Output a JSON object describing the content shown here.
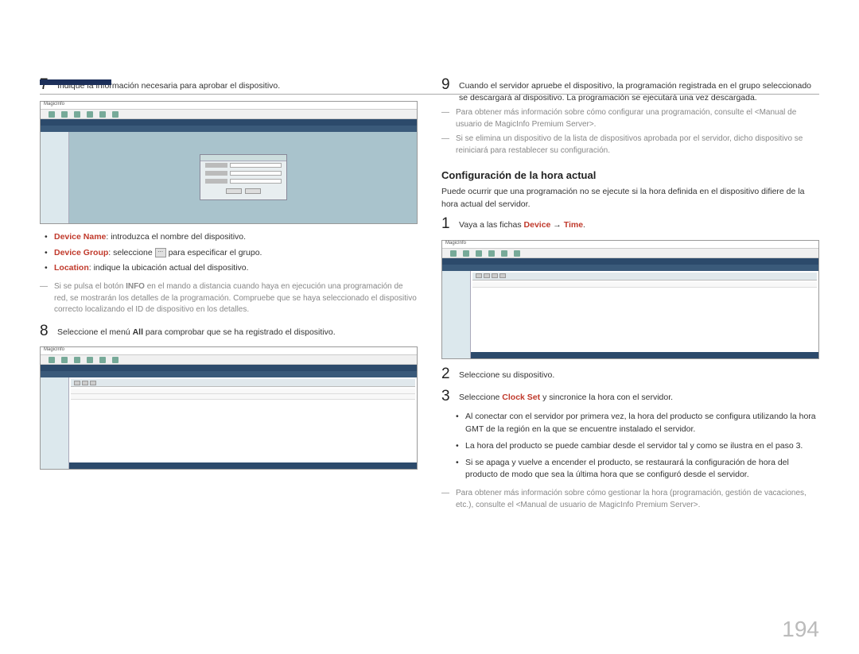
{
  "page_number": "194",
  "left": {
    "step7": {
      "num": "7",
      "text": "Indique la información necesaria para aprobar el dispositivo."
    },
    "screenshot1": {
      "logo": "MagicInfo"
    },
    "bullets": {
      "b1_label": "Device Name",
      "b1_text": ": introduzca el nombre del dispositivo.",
      "b2_label": "Device Group",
      "b2_text_a": ": seleccione ",
      "b2_text_b": " para especificar el grupo.",
      "b3_label": "Location",
      "b3_text": ": indique la ubicación actual del dispositivo."
    },
    "note1_a": "Si se pulsa el botón ",
    "note1_b": "INFO",
    "note1_c": " en el mando a distancia cuando haya en ejecución una programación de red, se mostrarán los detalles de la programación. Compruebe que se haya seleccionado el dispositivo correcto localizando el ID de dispositivo en los detalles.",
    "step8": {
      "num": "8",
      "text_a": "Seleccione el menú ",
      "text_b": "All",
      "text_c": " para comprobar que se ha registrado el dispositivo."
    }
  },
  "right": {
    "step9": {
      "num": "9",
      "text": "Cuando el servidor apruebe el dispositivo, la programación registrada en el grupo seleccionado se descargará al dispositivo. La programación se ejecutará una vez descargada."
    },
    "note2": "Para obtener más información sobre cómo configurar una programación, consulte el <Manual de usuario de MagicInfo Premium Server>.",
    "note3": "Si se elimina un dispositivo de la lista de dispositivos aprobada por el servidor, dicho dispositivo se reiniciará para restablecer su configuración.",
    "heading": "Configuración de la hora actual",
    "intro": "Puede ocurrir que una programación no se ejecute si la hora definida en el dispositivo difiere de la hora actual del servidor.",
    "step1": {
      "num": "1",
      "text_a": "Vaya a las fichas ",
      "text_b": "Device",
      "text_c": " → ",
      "text_d": "Time",
      "text_e": "."
    },
    "step2": {
      "num": "2",
      "text": "Seleccione su dispositivo."
    },
    "step3": {
      "num": "3",
      "text_a": "Seleccione ",
      "text_b": "Clock Set",
      "text_c": " y sincronice la hora con el servidor."
    },
    "subs": {
      "s1": "Al conectar con el servidor por primera vez, la hora del producto se configura utilizando la hora GMT de la región en la que se encuentre instalado el servidor.",
      "s2": "La hora del producto se puede cambiar desde el servidor tal y como se ilustra en el paso 3.",
      "s3": "Si se apaga y vuelve a encender el producto, se restaurará la configuración de hora del producto de modo que sea la última hora que se configuró desde el servidor."
    },
    "note4": "Para obtener más información sobre cómo gestionar la hora (programación, gestión de vacaciones, etc.), consulte el <Manual de usuario de MagicInfo Premium Server>."
  }
}
